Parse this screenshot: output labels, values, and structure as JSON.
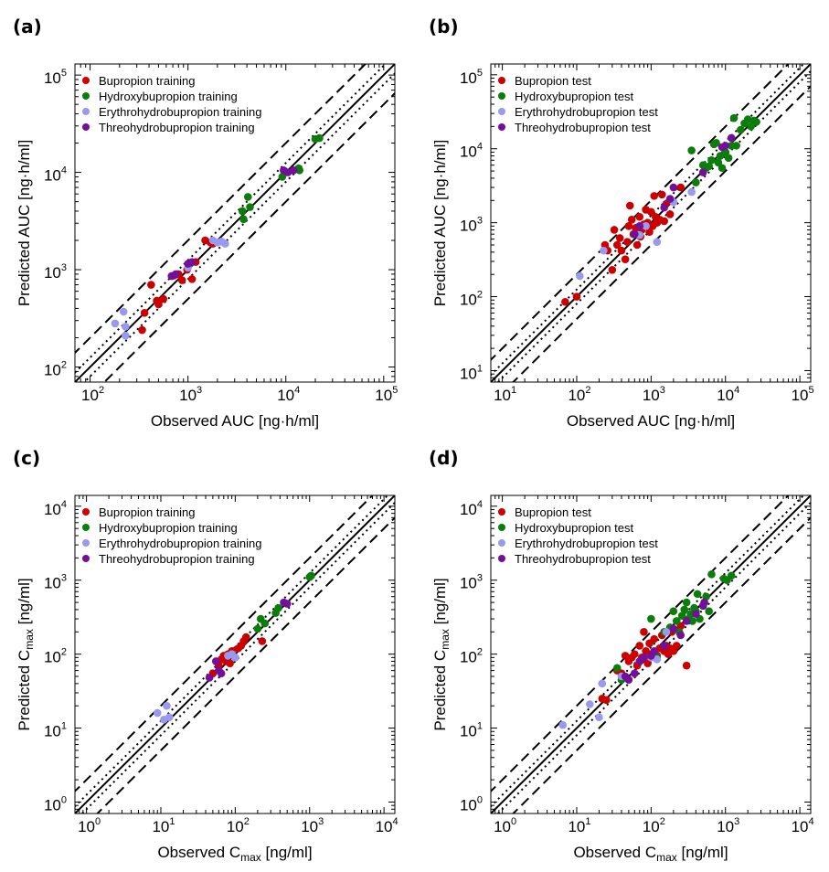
{
  "colors": {
    "bupropion": "#cc0000",
    "hydroxybupropion": "#0a7d0a",
    "erythrohydrobupropion": "#9999f0",
    "threohydrobupropion": "#730f9a"
  },
  "chart_data": [
    {
      "type": "scatter",
      "panel": "(a)",
      "scale": "log-log",
      "xlabel": "Observed AUC [ng·h/ml]",
      "ylabel": "Predicted AUC [ng·h/ml]",
      "xlim": [
        70,
        130000
      ],
      "ylim": [
        70,
        130000
      ],
      "xticks": [
        "10^2",
        "10^3",
        "10^4",
        "10^5"
      ],
      "yticks": [
        "10^2",
        "10^3",
        "10^4",
        "10^5"
      ],
      "reference_lines": {
        "identity": "solid",
        "fold_1_25": "dotted",
        "fold_2": "dashed"
      },
      "legend_position": "top-left",
      "series": [
        {
          "name": "Bupropion training",
          "color": "bupropion",
          "points": [
            [
              340,
              240
            ],
            [
              360,
              360
            ],
            [
              420,
              700
            ],
            [
              480,
              480
            ],
            [
              500,
              440
            ],
            [
              560,
              500
            ],
            [
              720,
              870
            ],
            [
              800,
              900
            ],
            [
              870,
              780
            ],
            [
              980,
              1000
            ],
            [
              1100,
              800
            ],
            [
              1200,
              1200
            ],
            [
              1500,
              2000
            ],
            [
              1700,
              1900
            ],
            [
              1800,
              1850
            ]
          ]
        },
        {
          "name": "Hydroxybupropion training",
          "color": "hydroxybupropion",
          "points": [
            [
              3600,
              4000
            ],
            [
              3700,
              3300
            ],
            [
              4100,
              5600
            ],
            [
              4300,
              4400
            ],
            [
              9200,
              9000
            ],
            [
              13500,
              11000
            ],
            [
              13800,
              10500
            ],
            [
              20000,
              22000
            ],
            [
              22000,
              22500
            ]
          ]
        },
        {
          "name": "Erythrohydrobupropion training",
          "color": "erythrohydrobupropion",
          "points": [
            [
              180,
              280
            ],
            [
              220,
              370
            ],
            [
              230,
              260
            ],
            [
              230,
              210
            ],
            [
              1000,
              1050
            ],
            [
              1800,
              2000
            ],
            [
              2000,
              1900
            ],
            [
              2200,
              1950
            ],
            [
              2400,
              1850
            ]
          ]
        },
        {
          "name": "Threohydrobupropion training",
          "color": "threohydrobupropion",
          "points": [
            [
              680,
              860
            ],
            [
              750,
              900
            ],
            [
              1000,
              1150
            ],
            [
              1100,
              1200
            ],
            [
              9500,
              10500
            ],
            [
              10500,
              10000
            ],
            [
              12000,
              10500
            ]
          ]
        }
      ]
    },
    {
      "type": "scatter",
      "panel": "(b)",
      "scale": "log-log",
      "xlabel": "Observed AUC [ng·h/ml]",
      "ylabel": "Predicted AUC [ng·h/ml]",
      "xlim": [
        7,
        140000
      ],
      "ylim": [
        7,
        140000
      ],
      "xticks": [
        "10^1",
        "10^2",
        "10^3",
        "10^4",
        "10^5"
      ],
      "yticks": [
        "10^1",
        "10^2",
        "10^3",
        "10^4",
        "10^5"
      ],
      "reference_lines": {
        "identity": "solid",
        "fold_1_25": "dotted",
        "fold_2": "dashed"
      },
      "legend_position": "top-left",
      "series": [
        {
          "name": "Bupropion test",
          "color": "bupropion",
          "points": [
            [
              70,
              85
            ],
            [
              100,
              100
            ],
            [
              240,
              500
            ],
            [
              260,
              420
            ],
            [
              300,
              230
            ],
            [
              320,
              800
            ],
            [
              350,
              500
            ],
            [
              380,
              620
            ],
            [
              400,
              420
            ],
            [
              450,
              320
            ],
            [
              480,
              550
            ],
            [
              500,
              900
            ],
            [
              520,
              1700
            ],
            [
              550,
              1100
            ],
            [
              580,
              700
            ],
            [
              620,
              850
            ],
            [
              650,
              500
            ],
            [
              700,
              1200
            ],
            [
              720,
              650
            ],
            [
              750,
              800
            ],
            [
              800,
              950
            ],
            [
              850,
              1500
            ],
            [
              900,
              1000
            ],
            [
              950,
              750
            ],
            [
              1000,
              1400
            ],
            [
              1050,
              900
            ],
            [
              1100,
              2300
            ],
            [
              1150,
              1200
            ],
            [
              1200,
              1000
            ],
            [
              1300,
              1100
            ],
            [
              1400,
              2400
            ],
            [
              1500,
              1050
            ],
            [
              1600,
              1800
            ],
            [
              1800,
              1300
            ],
            [
              2500,
              3000
            ]
          ]
        },
        {
          "name": "Hydroxybupropion test",
          "color": "hydroxybupropion",
          "points": [
            [
              3500,
              9500
            ],
            [
              4000,
              3500
            ],
            [
              5000,
              6000
            ],
            [
              5500,
              5500
            ],
            [
              6000,
              5800
            ],
            [
              6500,
              7000
            ],
            [
              7000,
              11500
            ],
            [
              7500,
              12000
            ],
            [
              8000,
              6500
            ],
            [
              8500,
              8000
            ],
            [
              9000,
              5500
            ],
            [
              10000,
              9000
            ],
            [
              11000,
              7500
            ],
            [
              12000,
              11000
            ],
            [
              13000,
              26000
            ],
            [
              14000,
              11000
            ],
            [
              16000,
              18000
            ],
            [
              18000,
              22000
            ],
            [
              20000,
              25000
            ],
            [
              22000,
              20000
            ],
            [
              24000,
              24000
            ],
            [
              26000,
              23000
            ]
          ]
        },
        {
          "name": "Erythrohydrobupropion test",
          "color": "erythrohydrobupropion",
          "points": [
            [
              110,
              190
            ],
            [
              230,
              420
            ],
            [
              700,
              680
            ],
            [
              850,
              900
            ],
            [
              1200,
              550
            ],
            [
              2000,
              1900
            ],
            [
              3500,
              2600
            ]
          ]
        },
        {
          "name": "Threohydrobupropion test",
          "color": "threohydrobupropion",
          "points": [
            [
              600,
              700
            ],
            [
              700,
              900
            ],
            [
              1500,
              1600
            ],
            [
              1800,
              2100
            ],
            [
              2000,
              3000
            ],
            [
              5000,
              4800
            ],
            [
              9000,
              10500
            ],
            [
              10000,
              11000
            ],
            [
              12000,
              14000
            ]
          ]
        }
      ]
    },
    {
      "type": "scatter",
      "panel": "(c)",
      "scale": "log-log",
      "xlabel": "Observed C_max [ng/ml]",
      "ylabel": "Predicted C_max [ng/ml]",
      "xlim": [
        0.7,
        14000
      ],
      "ylim": [
        0.7,
        14000
      ],
      "xticks": [
        "10^0",
        "10^1",
        "10^2",
        "10^3",
        "10^4"
      ],
      "yticks": [
        "10^0",
        "10^1",
        "10^2",
        "10^3",
        "10^4"
      ],
      "reference_lines": {
        "identity": "solid",
        "fold_1_25": "dotted",
        "fold_2": "dashed"
      },
      "legend_position": "top-left",
      "series": [
        {
          "name": "Bupropion training",
          "color": "bupropion",
          "points": [
            [
              50,
              55
            ],
            [
              60,
              70
            ],
            [
              65,
              85
            ],
            [
              70,
              95
            ],
            [
              75,
              80
            ],
            [
              80,
              100
            ],
            [
              85,
              75
            ],
            [
              90,
              110
            ],
            [
              100,
              90
            ],
            [
              110,
              120
            ],
            [
              120,
              130
            ],
            [
              130,
              150
            ],
            [
              140,
              170
            ],
            [
              230,
              150
            ]
          ]
        },
        {
          "name": "Hydroxybupropion training",
          "color": "hydroxybupropion",
          "points": [
            [
              200,
              220
            ],
            [
              220,
              300
            ],
            [
              250,
              260
            ],
            [
              350,
              360
            ],
            [
              380,
              420
            ],
            [
              1000,
              1100
            ],
            [
              1050,
              1150
            ]
          ]
        },
        {
          "name": "Erythrohydrobupropion training",
          "color": "erythrohydrobupropion",
          "points": [
            [
              9,
              16
            ],
            [
              11,
              13
            ],
            [
              12,
              20
            ],
            [
              13,
              14
            ],
            [
              80,
              95
            ],
            [
              90,
              100
            ],
            [
              100,
              90
            ]
          ]
        },
        {
          "name": "Threohydrobupropion training",
          "color": "threohydrobupropion",
          "points": [
            [
              45,
              48
            ],
            [
              55,
              80
            ],
            [
              60,
              60
            ],
            [
              65,
              55
            ],
            [
              450,
              500
            ],
            [
              500,
              480
            ]
          ]
        }
      ]
    },
    {
      "type": "scatter",
      "panel": "(d)",
      "scale": "log-log",
      "xlabel": "Observed C_max [ng/ml]",
      "ylabel": "Predicted C_max [ng/ml]",
      "xlim": [
        0.7,
        14000
      ],
      "ylim": [
        0.7,
        14000
      ],
      "xticks": [
        "10^0",
        "10^1",
        "10^2",
        "10^3",
        "10^4"
      ],
      "yticks": [
        "10^0",
        "10^1",
        "10^2",
        "10^3",
        "10^4"
      ],
      "reference_lines": {
        "identity": "solid",
        "fold_1_25": "dotted",
        "fold_2": "dashed"
      },
      "legend_position": "top-left",
      "series": [
        {
          "name": "Bupropion test",
          "color": "bupropion",
          "points": [
            [
              22,
              25
            ],
            [
              25,
              24
            ],
            [
              35,
              60
            ],
            [
              40,
              55
            ],
            [
              45,
              95
            ],
            [
              50,
              80
            ],
            [
              55,
              90
            ],
            [
              60,
              100
            ],
            [
              65,
              70
            ],
            [
              70,
              130
            ],
            [
              75,
              90
            ],
            [
              80,
              200
            ],
            [
              85,
              110
            ],
            [
              90,
              75
            ],
            [
              95,
              140
            ],
            [
              100,
              100
            ],
            [
              110,
              160
            ],
            [
              120,
              95
            ],
            [
              130,
              120
            ],
            [
              140,
              180
            ],
            [
              150,
              110
            ],
            [
              160,
              130
            ],
            [
              170,
              100
            ],
            [
              180,
              120
            ],
            [
              190,
              200
            ],
            [
              200,
              110
            ],
            [
              220,
              130
            ],
            [
              250,
              240
            ],
            [
              300,
              70
            ]
          ]
        },
        {
          "name": "Hydroxybupropion test",
          "color": "hydroxybupropion",
          "points": [
            [
              35,
              65
            ],
            [
              40,
              45
            ],
            [
              100,
              300
            ],
            [
              120,
              90
            ],
            [
              150,
              200
            ],
            [
              180,
              230
            ],
            [
              200,
              380
            ],
            [
              220,
              280
            ],
            [
              240,
              200
            ],
            [
              260,
              330
            ],
            [
              280,
              400
            ],
            [
              300,
              500
            ],
            [
              320,
              300
            ],
            [
              340,
              350
            ],
            [
              360,
              280
            ],
            [
              380,
              420
            ],
            [
              400,
              380
            ],
            [
              420,
              650
            ],
            [
              450,
              300
            ],
            [
              500,
              450
            ],
            [
              550,
              600
            ],
            [
              600,
              380
            ],
            [
              650,
              1200
            ],
            [
              950,
              1050
            ],
            [
              1050,
              1000
            ],
            [
              1200,
              1150
            ]
          ]
        },
        {
          "name": "Erythrohydrobupropion test",
          "color": "erythrohydrobupropion",
          "points": [
            [
              6.5,
              11
            ],
            [
              15,
              21
            ],
            [
              20,
              14
            ],
            [
              22,
              40
            ],
            [
              40,
              50
            ],
            [
              100,
              90
            ],
            [
              120,
              85
            ],
            [
              160,
              200
            ]
          ]
        },
        {
          "name": "Threohydrobupropion test",
          "color": "threohydrobupropion",
          "points": [
            [
              45,
              50
            ],
            [
              50,
              45
            ],
            [
              60,
              55
            ],
            [
              70,
              80
            ],
            [
              80,
              90
            ],
            [
              100,
              95
            ],
            [
              110,
              110
            ],
            [
              150,
              130
            ],
            [
              200,
              220
            ],
            [
              250,
              180
            ],
            [
              300,
              280
            ],
            [
              400,
              350
            ],
            [
              500,
              450
            ],
            [
              520,
              500
            ]
          ]
        }
      ]
    }
  ]
}
